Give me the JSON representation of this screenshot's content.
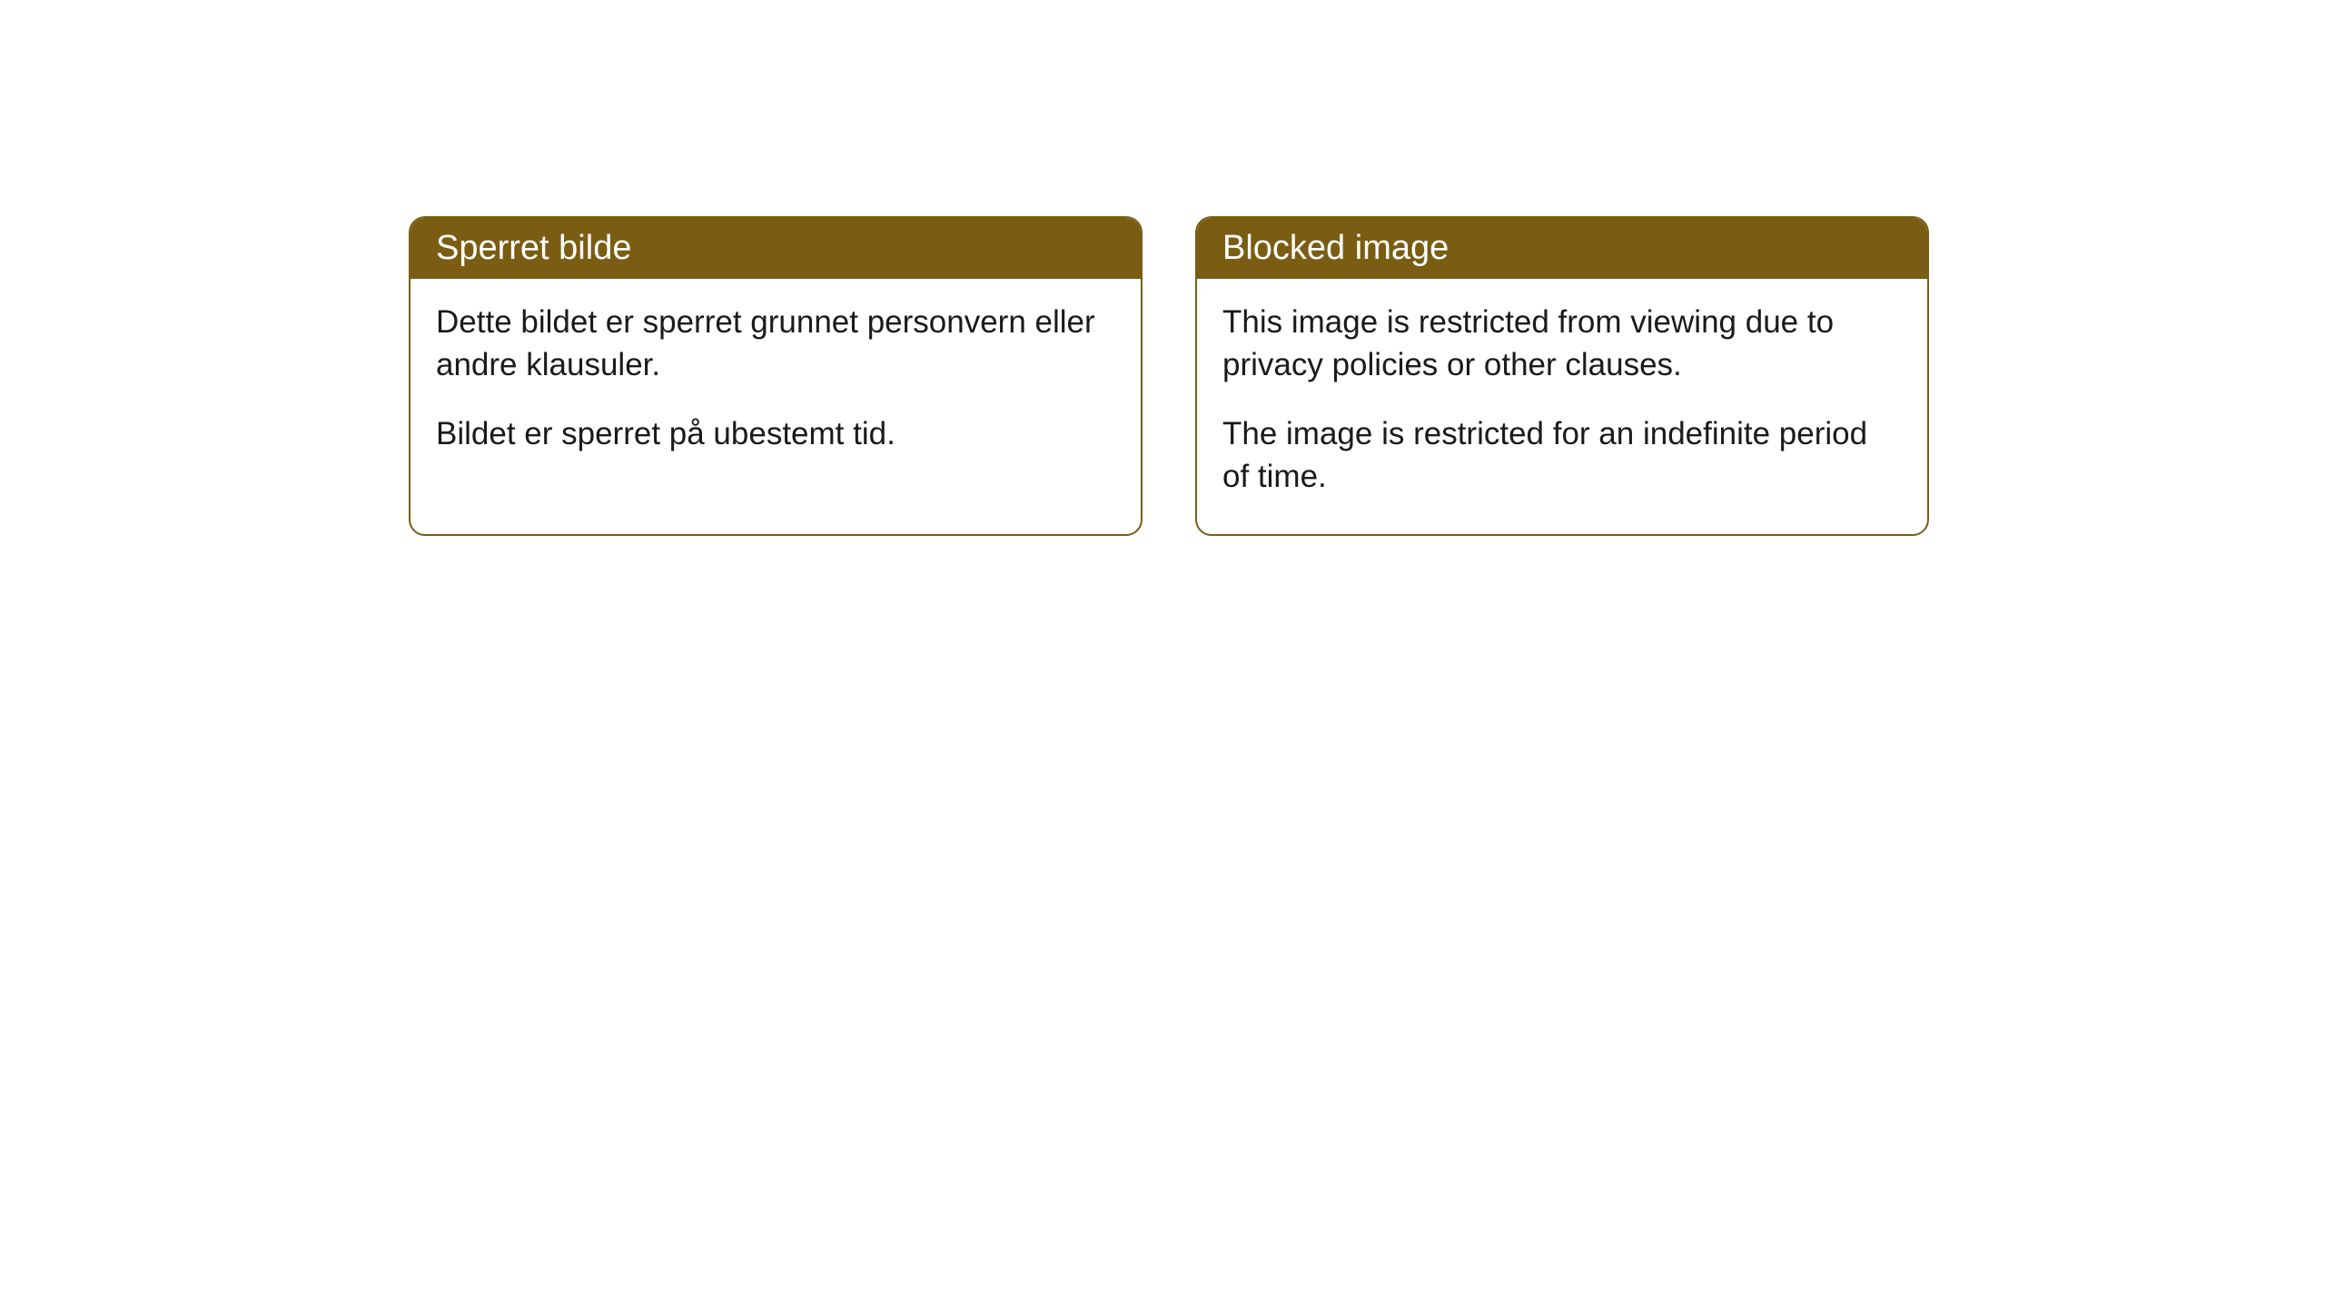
{
  "cards": [
    {
      "title": "Sperret bilde",
      "paragraph1": "Dette bildet er sperret grunnet personvern eller andre klausuler.",
      "paragraph2": "Bildet er sperret på ubestemt tid."
    },
    {
      "title": "Blocked image",
      "paragraph1": "This image is restricted from viewing due to privacy policies or other clauses.",
      "paragraph2": "The image is restricted for an indefinite period of time."
    }
  ],
  "style": {
    "header_bg_color": "#7a5d13",
    "header_text_color": "#ffffff",
    "border_color": "#7a5d13",
    "body_text_color": "#1a1a1a",
    "body_bg_color": "#ffffff",
    "border_radius": 18,
    "title_fontsize": 38,
    "body_fontsize": 35
  }
}
